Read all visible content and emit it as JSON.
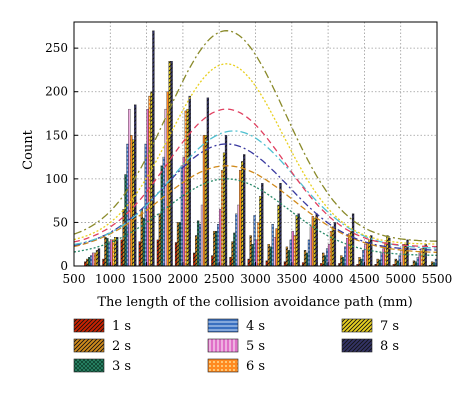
{
  "chart_data": {
    "type": "bar",
    "title": "",
    "xlabel": "The length of the collision avoidance path (mm)",
    "ylabel": "Count",
    "xlim": [
      500,
      5500
    ],
    "ylim": [
      0,
      280
    ],
    "x_ticks": [
      "500",
      "1000",
      "1500",
      "2000",
      "2500",
      "3000",
      "3500",
      "4000",
      "4500",
      "5000",
      "5500"
    ],
    "y_ticks": [
      "0",
      "50",
      "100",
      "150",
      "200",
      "250"
    ],
    "grid": true,
    "legend_position": "bottom",
    "bin_centers": [
      750,
      1000,
      1250,
      1500,
      1750,
      2000,
      2250,
      2500,
      2750,
      3000,
      3250,
      3500,
      3750,
      4000,
      4250,
      4500,
      4750,
      5000,
      5250,
      5500
    ],
    "series": [
      {
        "name": "1 s",
        "color": "#cc2200",
        "pattern": "diag",
        "curve_color": "#cc2200",
        "values": [
          5,
          8,
          30,
          28,
          30,
          27,
          15,
          12,
          10,
          8,
          6,
          5,
          4,
          3,
          3,
          2,
          2,
          2,
          1,
          1
        ]
      },
      {
        "name": "2 s",
        "color": "#d08a1c",
        "pattern": "diag",
        "curve_color": "#d08a1c",
        "values": [
          8,
          33,
          65,
          65,
          60,
          50,
          35,
          40,
          28,
          35,
          25,
          22,
          18,
          15,
          12,
          10,
          8,
          8,
          6,
          5
        ]
      },
      {
        "name": "3 s",
        "color": "#2a8a6a",
        "pattern": "grid",
        "curve_color": "#2a8a6a",
        "values": [
          10,
          32,
          105,
          55,
          115,
          50,
          52,
          40,
          38,
          25,
          22,
          18,
          15,
          12,
          10,
          8,
          7,
          6,
          5,
          4
        ]
      },
      {
        "name": "4 s",
        "color": "#3a70c0",
        "pattern": "hline",
        "curve_color": "#3a70c0",
        "values": [
          12,
          28,
          140,
          140,
          125,
          115,
          48,
          48,
          60,
          58,
          48,
          30,
          30,
          20,
          22,
          18,
          15,
          12,
          10,
          8
        ]
      },
      {
        "name": "5 s",
        "color": "#e070c8",
        "pattern": "vline",
        "curve_color": "#e070c8",
        "values": [
          15,
          30,
          180,
          180,
          180,
          125,
          70,
          65,
          70,
          30,
          33,
          40,
          45,
          25,
          32,
          25,
          20,
          18,
          15,
          12
        ]
      },
      {
        "name": "6 s",
        "color": "#ff8a20",
        "pattern": "dots",
        "curve_color": "#ff8a20",
        "values": [
          15,
          30,
          150,
          195,
          200,
          178,
          150,
          110,
          110,
          50,
          43,
          35,
          57,
          40,
          37,
          27,
          27,
          25,
          20,
          18
        ]
      },
      {
        "name": "7 s",
        "color": "#e8d020",
        "pattern": "diag",
        "curve_color": "#d8c820",
        "values": [
          18,
          33,
          145,
          200,
          235,
          180,
          150,
          130,
          120,
          80,
          70,
          58,
          55,
          45,
          40,
          30,
          35,
          25,
          22,
          20
        ]
      },
      {
        "name": "8 s",
        "color": "#333366",
        "pattern": "diag",
        "curve_color": "#8a8a2a",
        "values": [
          20,
          33,
          185,
          270,
          235,
          195,
          193,
          150,
          128,
          95,
          95,
          60,
          60,
          50,
          60,
          35,
          32,
          30,
          25,
          25
        ]
      }
    ],
    "fit_curves": [
      {
        "series": "2 s",
        "color": "#d08a1c",
        "peak_x": 2600,
        "peak_y": 115,
        "width": 1300,
        "base": 15
      },
      {
        "series": "3 s",
        "color": "#2a8a6a",
        "peak_x": 2600,
        "peak_y": 100,
        "width": 1200,
        "base": 12
      },
      {
        "series": "4 s",
        "color": "#3a3aa0",
        "peak_x": 2600,
        "peak_y": 140,
        "width": 1200,
        "base": 18
      },
      {
        "series": "5 s",
        "color": "#50c0d0",
        "peak_x": 2700,
        "peak_y": 155,
        "width": 1200,
        "base": 20
      },
      {
        "series": "6 s",
        "color": "#e04060",
        "peak_x": 2600,
        "peak_y": 180,
        "width": 1150,
        "base": 22
      },
      {
        "series": "7 s",
        "color": "#e8d020",
        "peak_x": 2600,
        "peak_y": 232,
        "width": 1100,
        "base": 25
      },
      {
        "series": "8 s",
        "color": "#8a8a2a",
        "peak_x": 2600,
        "peak_y": 270,
        "width": 1150,
        "base": 28
      }
    ]
  }
}
